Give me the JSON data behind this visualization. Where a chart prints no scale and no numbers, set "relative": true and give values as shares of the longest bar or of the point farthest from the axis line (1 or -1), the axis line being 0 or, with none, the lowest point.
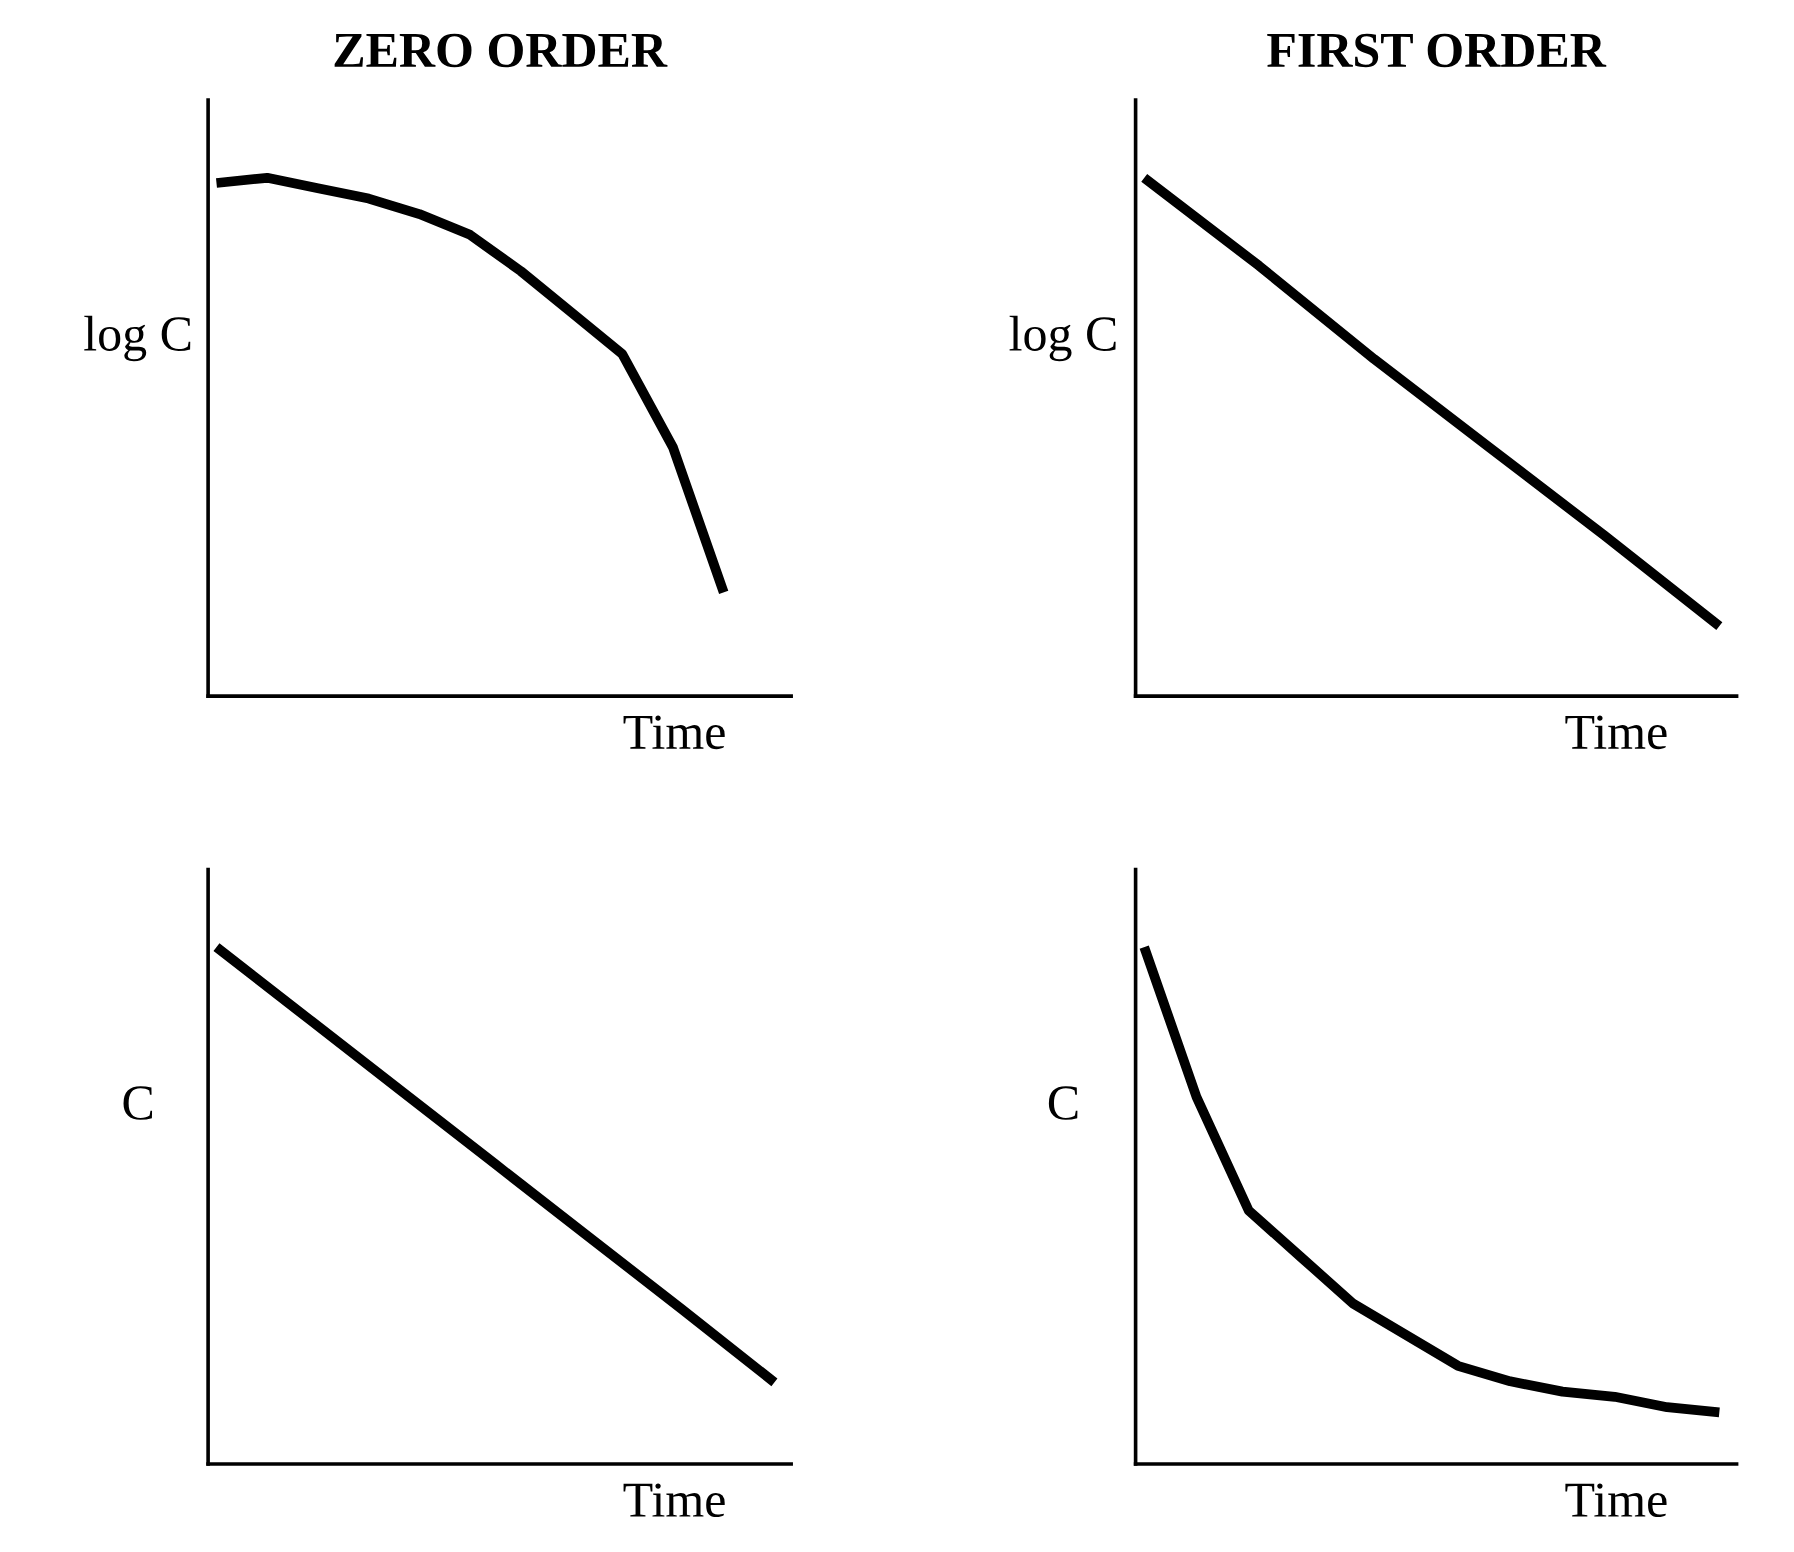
{
  "chart_data": [
    {
      "type": "line",
      "title": "ZERO ORDER",
      "xlabel": "Time",
      "ylabel": "log C",
      "relative": true,
      "color": "#000000",
      "categories": [
        null,
        null,
        null,
        null,
        null,
        null,
        null,
        null,
        null,
        null,
        null,
        null
      ],
      "values": [
        0.99,
        1,
        0.98,
        0.96,
        0.93,
        0.89,
        0.82,
        0.74,
        0.66,
        0.48,
        0.2,
        null
      ]
    },
    {
      "type": "line",
      "title": "FIRST ORDER",
      "xlabel": "Time",
      "ylabel": "log C",
      "relative": true,
      "color": "#000000",
      "categories": [
        null,
        null,
        null,
        null,
        null,
        null
      ],
      "values": [
        1,
        0.83,
        0.65,
        0.48,
        0.31,
        0.135
      ]
    },
    {
      "type": "line",
      "xlabel": "Time",
      "ylabel": "C",
      "relative": true,
      "color": "#000000",
      "categories": [
        null,
        null,
        null,
        null,
        null,
        null,
        null
      ],
      "values": [
        1,
        0.86,
        0.72,
        0.58,
        0.44,
        0.3,
        0.158
      ]
    },
    {
      "type": "line",
      "xlabel": "Time",
      "ylabel": "C",
      "relative": true,
      "color": "#000000",
      "categories": [
        null,
        null,
        null,
        null,
        null,
        null,
        null,
        null,
        null,
        null,
        null,
        null
      ],
      "values": [
        1,
        0.71,
        0.49,
        0.4,
        0.31,
        0.25,
        0.19,
        0.16,
        0.14,
        0.13,
        0.11,
        0.1
      ]
    }
  ]
}
